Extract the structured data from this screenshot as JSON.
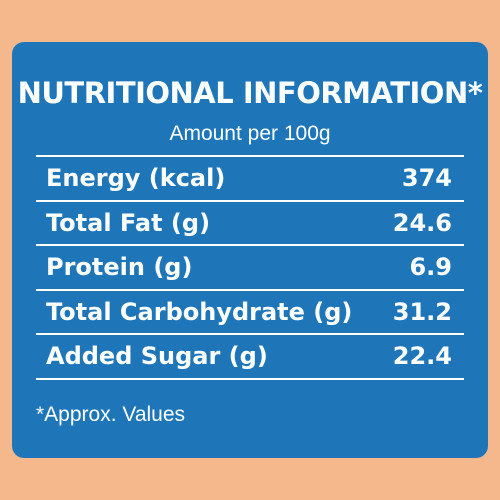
{
  "panel": {
    "title": "NUTRITIONAL INFORMATION*",
    "subtitle": "Amount per 100g",
    "rows": [
      {
        "label": "Energy (kcal)",
        "value": "374"
      },
      {
        "label": "Total Fat (g)",
        "value": "24.6"
      },
      {
        "label": "Protein (g)",
        "value": "6.9"
      },
      {
        "label": "Total Carbohydrate (g)",
        "value": "31.2"
      },
      {
        "label": "Added Sugar (g)",
        "value": "22.4"
      }
    ],
    "footnote": "*Approx. Values"
  },
  "colors": {
    "background": "#f5b88d",
    "panel": "#1e76b9",
    "text": "#ffffff"
  }
}
